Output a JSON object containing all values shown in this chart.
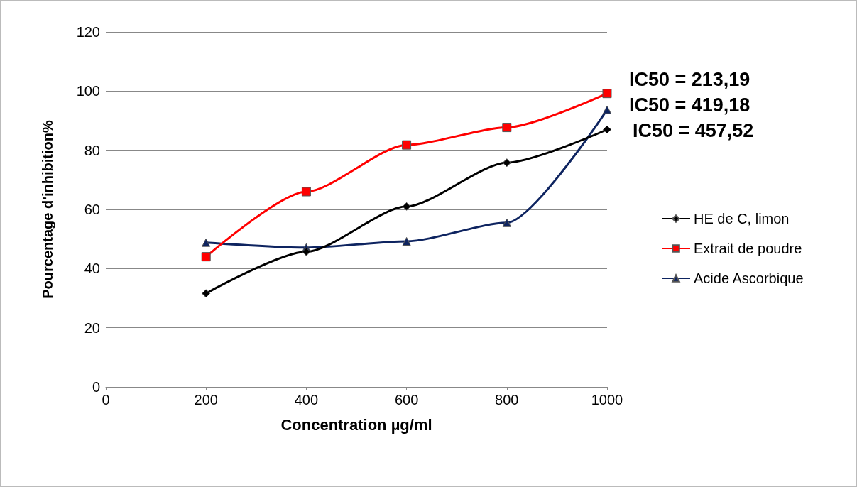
{
  "chart_data": {
    "type": "line",
    "xlabel": "Concentration µg/ml",
    "ylabel": "Pourcentage d'inhibition%",
    "x": [
      200,
      400,
      600,
      800,
      1000
    ],
    "series": [
      {
        "name": "HE de C, limon",
        "color": "#000000",
        "marker": "diamond",
        "values": [
          31.6,
          45.7,
          61,
          75.8,
          87
        ]
      },
      {
        "name": "Extrait de poudre",
        "color": "#ff0000",
        "marker": "square",
        "values": [
          44,
          66,
          81.8,
          87.7,
          99.2
        ]
      },
      {
        "name": "Acide Ascorbique",
        "color": "#0e2460",
        "marker": "triangle",
        "values": [
          48.8,
          47.1,
          49.2,
          55.5,
          93.7
        ]
      }
    ],
    "annotations": [
      "IC50 = 213,19",
      "IC50 = 419,18",
      "IC50 = 457,52"
    ],
    "xlim": [
      0,
      1000
    ],
    "xticks": [
      0,
      200,
      400,
      600,
      800,
      1000
    ],
    "ylim": [
      0,
      120
    ],
    "yticks": [
      0,
      20,
      40,
      60,
      80,
      100,
      120
    ],
    "grid": "y",
    "legend": "right",
    "line_style": "solid"
  }
}
